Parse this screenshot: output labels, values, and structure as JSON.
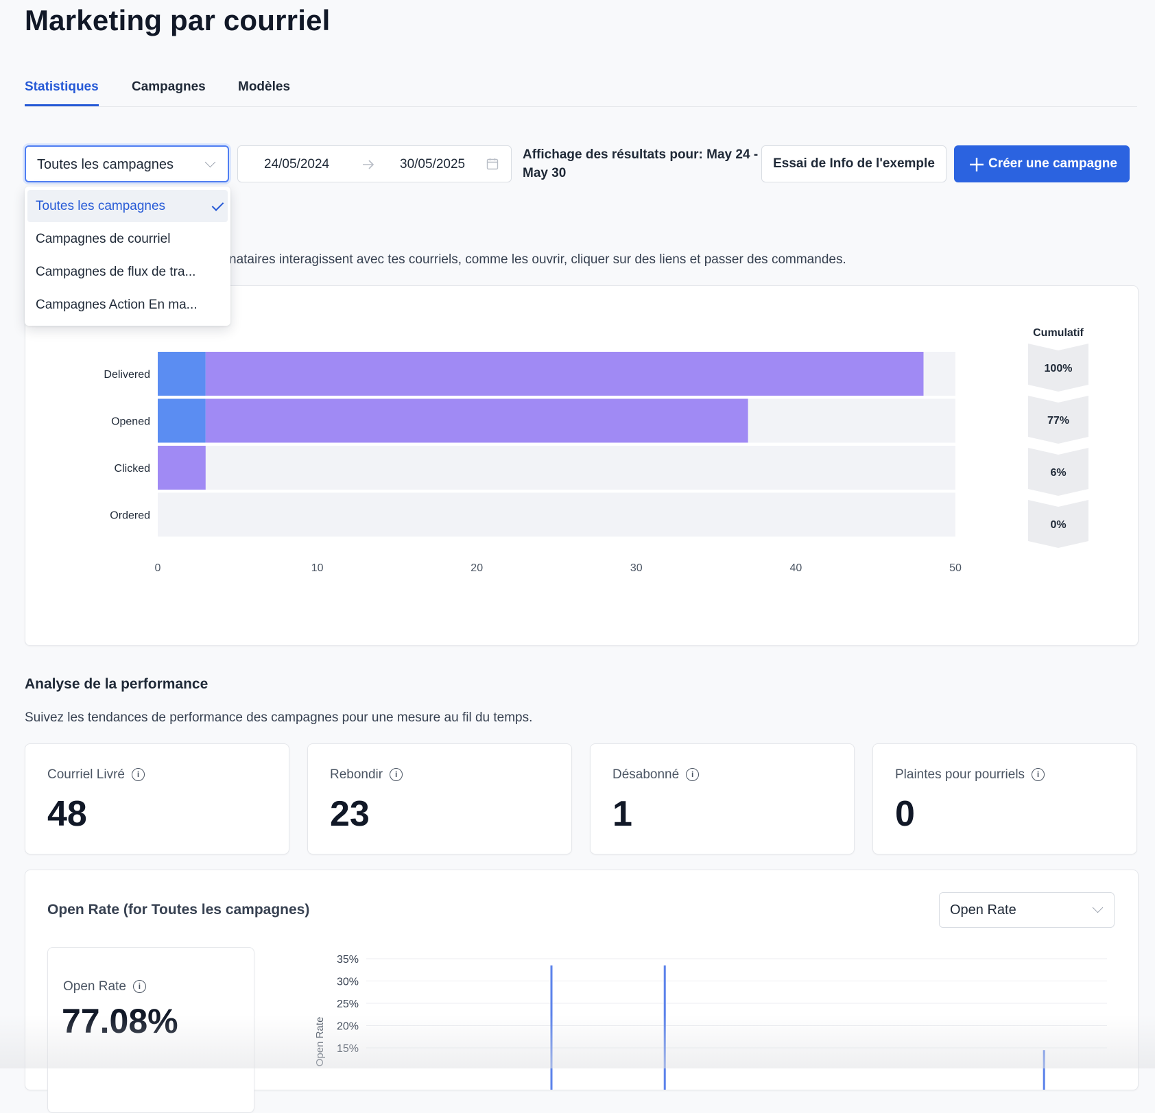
{
  "page": {
    "title": "Marketing par courriel"
  },
  "tabs": [
    {
      "label": "Statistiques",
      "active": true
    },
    {
      "label": "Campagnes",
      "active": false
    },
    {
      "label": "Modèles",
      "active": false
    }
  ],
  "filters": {
    "campaign_select": {
      "value": "Toutes les campagnes",
      "options": [
        "Toutes les campagnes",
        "Campagnes de courriel",
        "Campagnes de flux de tra...",
        "Campagnes Action En ma..."
      ]
    },
    "date_start": "24/05/2024",
    "date_end": "30/05/2025",
    "showing_text": "Affichage des résultats pour: May 24 - May 30",
    "demo_button": "Essai de Info de l'exemple",
    "create_button": "Créer une campagne"
  },
  "funnel": {
    "description_visible": "nataires interagissent avec tes courriels, comme les ouvrir, cliquer sur des liens et passer des commandes.",
    "cumulative_header": "Cumulatif"
  },
  "chart_data": [
    {
      "type": "bar",
      "orientation": "horizontal",
      "stacked": true,
      "categories": [
        "Delivered",
        "Opened",
        "Clicked",
        "Ordered"
      ],
      "series": [
        {
          "values": [
            3,
            3,
            0,
            0
          ],
          "color": "#5b8df2"
        },
        {
          "values": [
            45,
            34,
            3,
            0
          ],
          "color": "#a08af4"
        }
      ],
      "xlim": [
        0,
        50
      ],
      "xticks": [
        "0",
        "10",
        "20",
        "30",
        "40",
        "50"
      ],
      "cumulative": [
        "100%",
        "77%",
        "6%",
        "0%"
      ],
      "track_color": "#f2f3f7"
    },
    {
      "type": "line",
      "ylabel": "Open Rate",
      "yticks": [
        "35%",
        "30%",
        "25%",
        "20%",
        "15%"
      ],
      "ylim": [
        0,
        35
      ],
      "spikes": [
        {
          "x": 0.25,
          "y": 33.5
        },
        {
          "x": 0.403,
          "y": 33.5
        },
        {
          "x": 0.915,
          "y": 14.5
        }
      ],
      "color": "#5b82ea"
    }
  ],
  "performance": {
    "title": "Analyse de la performance",
    "subtitle": "Suivez les tendances de performance des campagnes pour une mesure au fil du temps.",
    "metrics": [
      {
        "label": "Courriel Livré",
        "value": "48"
      },
      {
        "label": "Rebondir",
        "value": "23"
      },
      {
        "label": "Désabonné",
        "value": "1"
      },
      {
        "label": "Plaintes pour pourriels",
        "value": "0"
      }
    ]
  },
  "open_rate": {
    "title": "Open Rate (for Toutes les campagnes)",
    "select_value": "Open Rate",
    "summary_label": "Open Rate",
    "summary_value": "77.08%"
  },
  "icons": {
    "info": "i",
    "plus": "+"
  }
}
